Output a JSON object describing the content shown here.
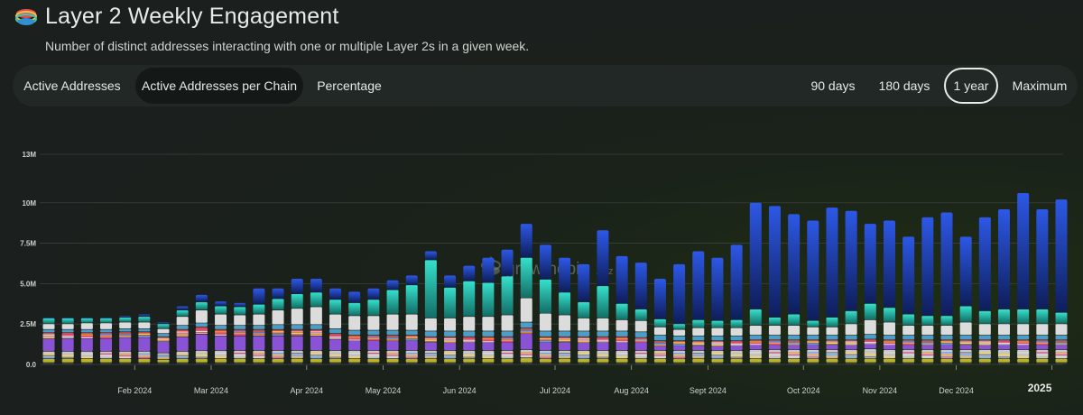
{
  "header": {
    "title": "Layer 2 Weekly Engagement",
    "subtitle": "Number of distinct addresses interacting with one or multiple Layer 2s in a given week.",
    "logo_icon": "pie-layers-logo-icon"
  },
  "tabs": [
    {
      "label": "Active Addresses",
      "active": false
    },
    {
      "label": "Active Addresses per Chain",
      "active": true
    },
    {
      "label": "Percentage",
      "active": false
    }
  ],
  "ranges": [
    {
      "label": "90 days",
      "active": false
    },
    {
      "label": "180 days",
      "active": false
    },
    {
      "label": "1 year",
      "active": true
    },
    {
      "label": "Maximum",
      "active": false
    }
  ],
  "watermark": {
    "text": "growthepie",
    "suffix": ".xyz"
  },
  "chart_data": {
    "type": "bar",
    "stacked": true,
    "ylim": [
      0,
      13000000
    ],
    "yticks": [
      {
        "value": 0,
        "label": "0.0"
      },
      {
        "value": 2500000,
        "label": "2.5M"
      },
      {
        "value": 5000000,
        "label": "5.0M"
      },
      {
        "value": 7500000,
        "label": "7.5M"
      },
      {
        "value": 10000000,
        "label": "10M"
      },
      {
        "value": 13000000,
        "label": "13M"
      }
    ],
    "xticks": [
      {
        "label": "Feb 2024",
        "week": 5
      },
      {
        "label": "Mar 2024",
        "week": 9
      },
      {
        "label": "Apr 2024",
        "week": 14
      },
      {
        "label": "May 2024",
        "week": 18
      },
      {
        "label": "Jun 2024",
        "week": 22
      },
      {
        "label": "Jul 2024",
        "week": 27
      },
      {
        "label": "Aug 2024",
        "week": 31
      },
      {
        "label": "Sept 2024",
        "week": 35
      },
      {
        "label": "Oct 2024",
        "week": 40
      },
      {
        "label": "Nov 2024",
        "week": 44
      },
      {
        "label": "Dec 2024",
        "week": 48
      },
      {
        "label": "2025",
        "week": 53,
        "emphasis": true
      }
    ],
    "grid": true,
    "series_colors": [
      "#3e4a3c",
      "#b8b032",
      "#c8c8c8",
      "#8a53d6",
      "#d24a4a",
      "#4a9ec8",
      "#dcdcdc",
      "#2fd0c0",
      "#2d55e0"
    ],
    "series_names": [
      "",
      "",
      "",
      "",
      "",
      "",
      "",
      "",
      ""
    ],
    "totals": [
      2.9,
      2.9,
      2.9,
      2.9,
      3.0,
      3.1,
      2.6,
      3.6,
      4.3,
      3.9,
      3.8,
      4.7,
      4.7,
      5.3,
      5.3,
      4.7,
      4.5,
      4.7,
      5.2,
      5.5,
      7.0,
      5.5,
      6.1,
      6.6,
      7.1,
      8.7,
      7.4,
      6.6,
      6.2,
      8.3,
      6.7,
      6.3,
      5.3,
      6.2,
      7.0,
      6.6,
      7.4,
      10.0,
      9.8,
      9.3,
      8.9,
      9.7,
      9.5,
      8.7,
      8.9,
      7.9,
      9.1,
      9.4,
      7.9,
      9.1,
      9.6,
      10.6,
      9.6,
      10.2
    ],
    "components": [
      [
        0.1,
        0.25,
        0.45,
        0.8,
        0.35,
        0.2,
        0.35,
        0.35
      ],
      [
        0.1,
        0.25,
        0.45,
        0.8,
        0.35,
        0.2,
        0.35,
        0.35
      ],
      [
        0.1,
        0.25,
        0.45,
        0.8,
        0.35,
        0.2,
        0.4,
        0.3
      ],
      [
        0.1,
        0.25,
        0.45,
        0.8,
        0.35,
        0.2,
        0.4,
        0.3
      ],
      [
        0.1,
        0.25,
        0.45,
        0.85,
        0.35,
        0.2,
        0.4,
        0.3
      ],
      [
        0.1,
        0.25,
        0.45,
        0.85,
        0.35,
        0.2,
        0.4,
        0.35
      ],
      [
        0.1,
        0.2,
        0.4,
        0.7,
        0.3,
        0.2,
        0.3,
        0.3
      ],
      [
        0.1,
        0.25,
        0.45,
        0.9,
        0.45,
        0.25,
        0.55,
        0.4
      ],
      [
        0.1,
        0.25,
        0.5,
        1.0,
        0.45,
        0.25,
        0.8,
        0.5
      ],
      [
        0.1,
        0.25,
        0.5,
        0.9,
        0.4,
        0.25,
        0.7,
        0.5
      ],
      [
        0.1,
        0.25,
        0.5,
        0.9,
        0.4,
        0.25,
        0.65,
        0.5
      ],
      [
        0.1,
        0.25,
        0.5,
        0.9,
        0.4,
        0.25,
        0.7,
        0.6
      ],
      [
        0.1,
        0.25,
        0.5,
        0.9,
        0.4,
        0.3,
        0.9,
        0.7
      ],
      [
        0.1,
        0.25,
        0.5,
        0.9,
        0.4,
        0.3,
        1.0,
        0.9
      ],
      [
        0.1,
        0.25,
        0.5,
        0.9,
        0.4,
        0.3,
        1.1,
        0.9
      ],
      [
        0.1,
        0.25,
        0.5,
        0.7,
        0.35,
        0.3,
        0.9,
        0.9
      ],
      [
        0.1,
        0.25,
        0.5,
        0.6,
        0.35,
        0.3,
        0.9,
        0.8
      ],
      [
        0.1,
        0.25,
        0.5,
        0.6,
        0.35,
        0.3,
        0.9,
        1.0
      ],
      [
        0.1,
        0.25,
        0.5,
        0.6,
        0.35,
        0.3,
        1.0,
        1.5
      ],
      [
        0.1,
        0.25,
        0.5,
        0.6,
        0.35,
        0.3,
        1.0,
        1.8
      ],
      [
        0.1,
        0.25,
        0.5,
        0.5,
        0.35,
        0.35,
        0.8,
        3.6
      ],
      [
        0.1,
        0.25,
        0.5,
        0.5,
        0.35,
        0.35,
        0.8,
        1.9
      ],
      [
        0.1,
        0.25,
        0.5,
        0.5,
        0.35,
        0.35,
        0.9,
        2.2
      ],
      [
        0.1,
        0.25,
        0.5,
        0.5,
        0.35,
        0.35,
        0.9,
        2.1
      ],
      [
        0.1,
        0.25,
        0.5,
        0.5,
        0.35,
        0.35,
        1.0,
        2.4
      ],
      [
        0.1,
        0.3,
        0.5,
        1.0,
        0.35,
        0.35,
        1.5,
        2.5
      ],
      [
        0.1,
        0.25,
        0.5,
        0.5,
        0.35,
        0.35,
        1.1,
        2.1
      ],
      [
        0.1,
        0.25,
        0.5,
        0.5,
        0.35,
        0.35,
        1.0,
        1.4
      ],
      [
        0.1,
        0.25,
        0.5,
        0.5,
        0.35,
        0.35,
        0.8,
        1.0
      ],
      [
        0.1,
        0.25,
        0.5,
        0.5,
        0.35,
        0.35,
        0.8,
        2.0
      ],
      [
        0.1,
        0.25,
        0.5,
        0.5,
        0.35,
        0.35,
        0.7,
        1.0
      ],
      [
        0.1,
        0.25,
        0.5,
        0.5,
        0.3,
        0.35,
        0.7,
        0.7
      ],
      [
        0.1,
        0.25,
        0.5,
        0.3,
        0.3,
        0.35,
        0.5,
        0.5
      ],
      [
        0.1,
        0.25,
        0.5,
        0.3,
        0.3,
        0.3,
        0.4,
        0.35
      ],
      [
        0.1,
        0.25,
        0.5,
        0.3,
        0.3,
        0.3,
        0.5,
        0.5
      ],
      [
        0.1,
        0.25,
        0.5,
        0.3,
        0.3,
        0.3,
        0.5,
        0.45
      ],
      [
        0.1,
        0.25,
        0.5,
        0.3,
        0.3,
        0.3,
        0.5,
        0.5
      ],
      [
        0.1,
        0.25,
        0.55,
        0.3,
        0.3,
        0.3,
        0.6,
        1.0
      ],
      [
        0.1,
        0.25,
        0.55,
        0.3,
        0.3,
        0.3,
        0.6,
        0.5
      ],
      [
        0.1,
        0.25,
        0.55,
        0.3,
        0.3,
        0.3,
        0.6,
        0.7
      ],
      [
        0.1,
        0.25,
        0.55,
        0.3,
        0.3,
        0.3,
        0.5,
        0.4
      ],
      [
        0.1,
        0.25,
        0.55,
        0.3,
        0.3,
        0.3,
        0.5,
        0.6
      ],
      [
        0.1,
        0.25,
        0.55,
        0.3,
        0.3,
        0.3,
        0.7,
        0.8
      ],
      [
        0.1,
        0.25,
        0.6,
        0.3,
        0.3,
        0.3,
        0.9,
        1.0
      ],
      [
        0.1,
        0.25,
        0.55,
        0.3,
        0.3,
        0.3,
        0.8,
        0.9
      ],
      [
        0.1,
        0.25,
        0.55,
        0.3,
        0.3,
        0.3,
        0.6,
        0.7
      ],
      [
        0.1,
        0.25,
        0.55,
        0.3,
        0.3,
        0.3,
        0.6,
        0.6
      ],
      [
        0.1,
        0.25,
        0.55,
        0.3,
        0.3,
        0.3,
        0.6,
        0.6
      ],
      [
        0.1,
        0.25,
        0.55,
        0.3,
        0.3,
        0.3,
        0.8,
        1.0
      ],
      [
        0.1,
        0.25,
        0.55,
        0.3,
        0.3,
        0.3,
        0.7,
        0.8
      ],
      [
        0.1,
        0.25,
        0.55,
        0.3,
        0.3,
        0.3,
        0.7,
        0.9
      ],
      [
        0.1,
        0.25,
        0.55,
        0.3,
        0.3,
        0.3,
        0.7,
        0.9
      ],
      [
        0.1,
        0.25,
        0.55,
        0.3,
        0.3,
        0.3,
        0.7,
        0.9
      ],
      [
        0.1,
        0.25,
        0.55,
        0.3,
        0.3,
        0.3,
        0.7,
        0.7
      ]
    ]
  }
}
